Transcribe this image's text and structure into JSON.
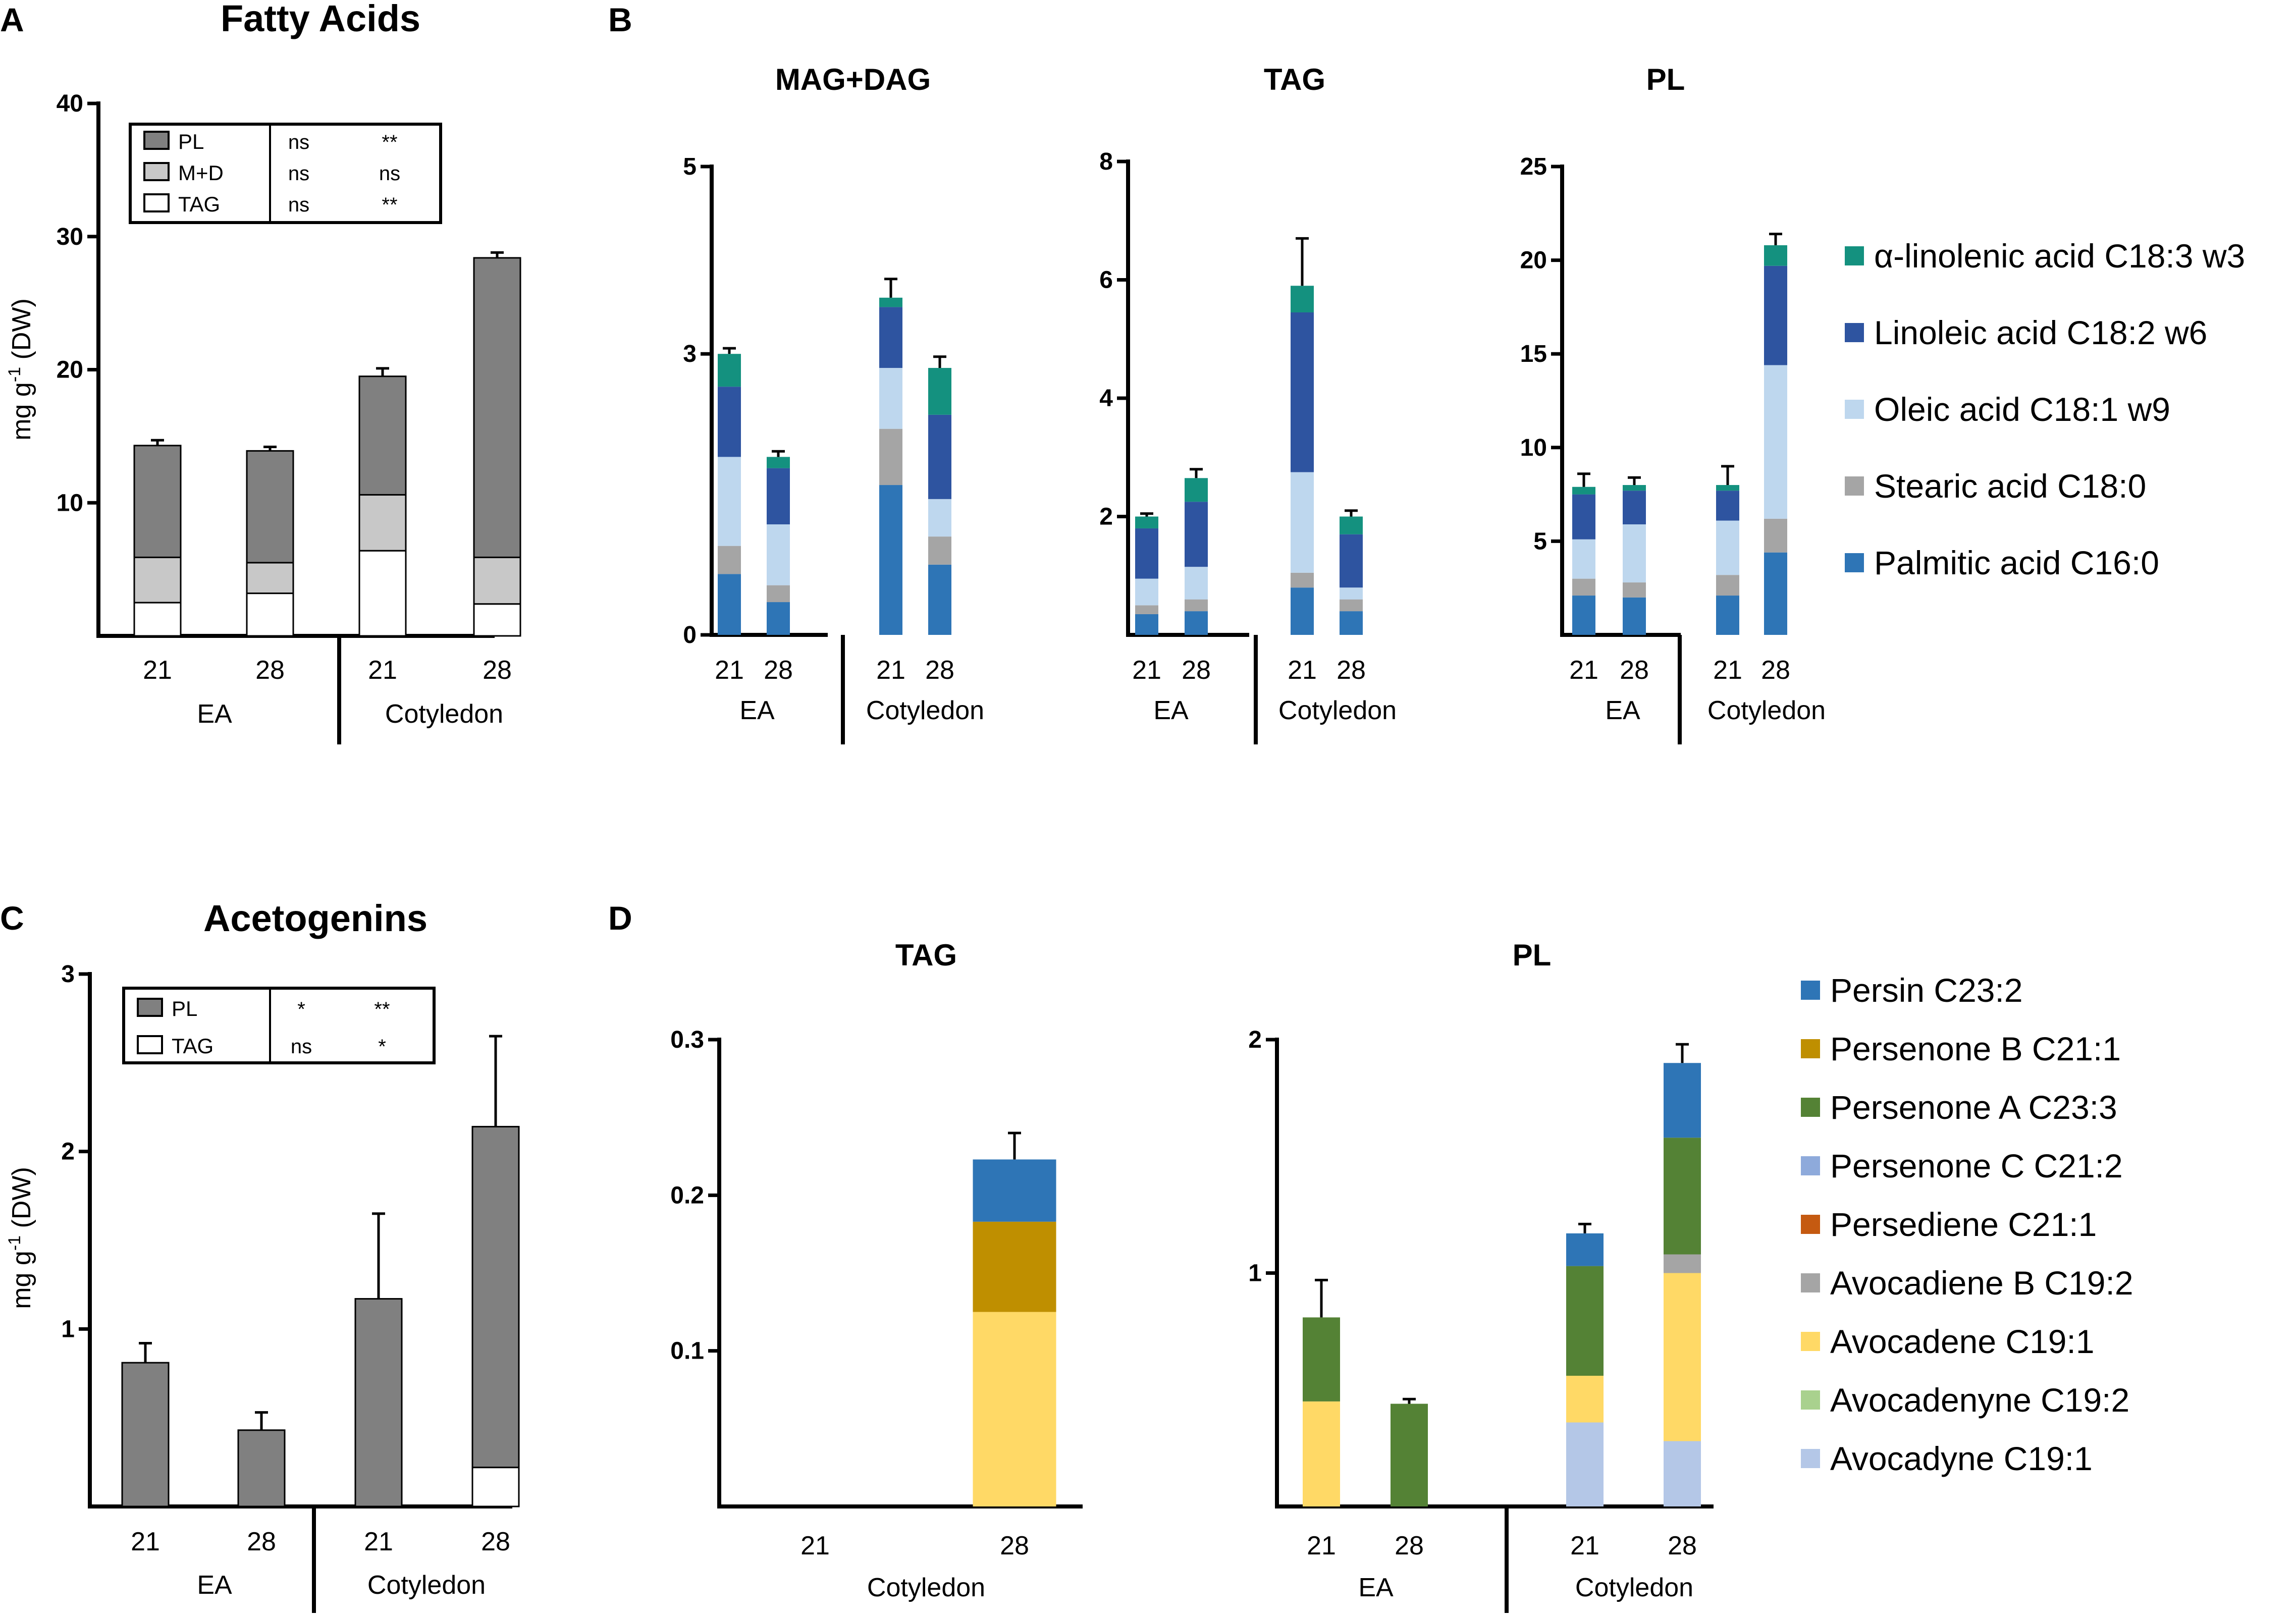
{
  "panels": {
    "A": "A",
    "B": "B",
    "C": "C",
    "D": "D"
  },
  "group_labels": {
    "ea": "EA",
    "cotyledon": "Cotyledon"
  },
  "fa_legend": {
    "items": [
      {
        "name": "α-linolenic acid C18:3 w3",
        "color": "#14917f"
      },
      {
        "name": "Linoleic acid  C18:2 w6",
        "color": "#2e54a0"
      },
      {
        "name": "Oleic acid C18:1 w9",
        "color": "#bed7ee"
      },
      {
        "name": "Stearic acid C18:0",
        "color": "#a5a5a5"
      },
      {
        "name": "Palmitic acid C16:0",
        "color": "#2e75b6"
      }
    ]
  },
  "ac_legend": {
    "items": [
      {
        "name": "Persin  C23:2",
        "color": "#2e75b6"
      },
      {
        "name": "Persenone B C21:1",
        "color": "#bf8f00"
      },
      {
        "name": "Persenone A C23:3",
        "color": "#548235"
      },
      {
        "name": "Persenone C C21:2",
        "color": "#8eaadb"
      },
      {
        "name": "Persediene C21:1",
        "color": "#c55a11"
      },
      {
        "name": "Avocadiene B C19:2",
        "color": "#a5a5a5"
      },
      {
        "name": "Avocadene C19:1",
        "color": "#ffd966"
      },
      {
        "name": "Avocadenyne C19:2",
        "color": "#a9d18e"
      },
      {
        "name": "Avocadyne C19:1",
        "color": "#b4c7e7"
      }
    ]
  },
  "chart_data": [
    {
      "id": "A",
      "type": "bar",
      "stacked": true,
      "title": "Fatty Acids",
      "ylabel": "mg g-1 (DW)",
      "ylim": [
        0,
        40
      ],
      "yticks": [
        10,
        20,
        30,
        40
      ],
      "categories": [
        "21",
        "28",
        "21",
        "28"
      ],
      "groups": [
        "EA",
        "EA",
        "Cotyledon",
        "Cotyledon"
      ],
      "series": [
        {
          "name": "TAG",
          "color": "#ffffff",
          "values": [
            2.5,
            3.2,
            6.4,
            2.4
          ]
        },
        {
          "name": "M+D",
          "color": "#c8c8c8",
          "values": [
            3.4,
            2.3,
            4.2,
            3.5
          ]
        },
        {
          "name": "PL",
          "color": "#808080",
          "values": [
            8.4,
            8.4,
            8.9,
            22.5
          ]
        }
      ],
      "errors": [
        0.4,
        0.3,
        0.6,
        0.4
      ],
      "sig_table": {
        "rows": [
          {
            "name": "PL",
            "color": "#808080",
            "ea": "ns",
            "cot": "**"
          },
          {
            "name": "M+D",
            "color": "#c8c8c8",
            "ea": "ns",
            "cot": "ns"
          },
          {
            "name": "TAG",
            "color": "#ffffff",
            "ea": "ns",
            "cot": "**"
          }
        ]
      }
    },
    {
      "id": "B1",
      "type": "bar",
      "stacked": true,
      "title": "MAG+DAG",
      "ylim": [
        0,
        5
      ],
      "yticks": [
        0,
        3,
        5
      ],
      "categories": [
        "21",
        "28",
        "21",
        "28"
      ],
      "groups": [
        "EA",
        "EA",
        "Cotyledon",
        "Cotyledon"
      ],
      "series": [
        {
          "name": "Palmitic acid C16:0",
          "color": "#2e75b6",
          "values": [
            0.65,
            0.35,
            1.6,
            0.75
          ]
        },
        {
          "name": "Stearic acid C18:0",
          "color": "#a5a5a5",
          "values": [
            0.3,
            0.18,
            0.6,
            0.3
          ]
        },
        {
          "name": "Oleic acid C18:1 w9",
          "color": "#bed7ee",
          "values": [
            0.95,
            0.65,
            0.65,
            0.4
          ]
        },
        {
          "name": "Linoleic acid  C18:2 w6",
          "color": "#2e54a0",
          "values": [
            0.75,
            0.6,
            0.65,
            0.9
          ]
        },
        {
          "name": "α-linolenic acid C18:3 w3",
          "color": "#14917f",
          "values": [
            0.35,
            0.12,
            0.1,
            0.5
          ]
        }
      ],
      "errors": [
        0.06,
        0.06,
        0.2,
        0.12
      ]
    },
    {
      "id": "B2",
      "type": "bar",
      "stacked": true,
      "title": "TAG",
      "ylim": [
        0,
        8
      ],
      "yticks": [
        2,
        4,
        6,
        8
      ],
      "categories": [
        "21",
        "28",
        "21",
        "28"
      ],
      "groups": [
        "EA",
        "EA",
        "Cotyledon",
        "Cotyledon"
      ],
      "series": [
        {
          "name": "Palmitic acid C16:0",
          "color": "#2e75b6",
          "values": [
            0.35,
            0.4,
            0.8,
            0.4
          ]
        },
        {
          "name": "Stearic acid C18:0",
          "color": "#a5a5a5",
          "values": [
            0.15,
            0.2,
            0.25,
            0.2
          ]
        },
        {
          "name": "Oleic acid C18:1 w9",
          "color": "#bed7ee",
          "values": [
            0.45,
            0.55,
            1.7,
            0.2
          ]
        },
        {
          "name": "Linoleic acid  C18:2 w6",
          "color": "#2e54a0",
          "values": [
            0.85,
            1.1,
            2.7,
            0.9
          ]
        },
        {
          "name": "α-linolenic acid C18:3 w3",
          "color": "#14917f",
          "values": [
            0.2,
            0.4,
            0.45,
            0.3
          ]
        }
      ],
      "errors": [
        0.05,
        0.15,
        0.8,
        0.1
      ]
    },
    {
      "id": "B3",
      "type": "bar",
      "stacked": true,
      "title": "PL",
      "ylim": [
        0,
        25
      ],
      "yticks": [
        5,
        10,
        15,
        20,
        25
      ],
      "categories": [
        "21",
        "28",
        "21",
        "28"
      ],
      "groups": [
        "EA",
        "EA",
        "Cotyledon",
        "Cotyledon"
      ],
      "series": [
        {
          "name": "Palmitic acid C16:0",
          "color": "#2e75b6",
          "values": [
            2.1,
            2.0,
            2.1,
            4.4
          ]
        },
        {
          "name": "Stearic acid C18:0",
          "color": "#a5a5a5",
          "values": [
            0.9,
            0.8,
            1.1,
            1.8
          ]
        },
        {
          "name": "Oleic acid C18:1 w9",
          "color": "#bed7ee",
          "values": [
            2.1,
            3.1,
            2.9,
            8.2
          ]
        },
        {
          "name": "Linoleic acid  C18:2 w6",
          "color": "#2e54a0",
          "values": [
            2.4,
            1.8,
            1.6,
            5.3
          ]
        },
        {
          "name": "α-linolenic acid C18:3 w3",
          "color": "#14917f",
          "values": [
            0.4,
            0.3,
            0.3,
            1.1
          ]
        }
      ],
      "errors": [
        0.7,
        0.4,
        1.0,
        0.6
      ]
    },
    {
      "id": "C",
      "type": "bar",
      "stacked": true,
      "title": "Acetogenins",
      "ylabel": "mg g-1 (DW)",
      "ylim": [
        0,
        3
      ],
      "yticks": [
        1,
        2,
        3
      ],
      "categories": [
        "21",
        "28",
        "21",
        "28"
      ],
      "groups": [
        "EA",
        "EA",
        "Cotyledon",
        "Cotyledon"
      ],
      "series": [
        {
          "name": "TAG",
          "color": "#ffffff",
          "values": [
            0,
            0,
            0,
            0.22
          ]
        },
        {
          "name": "PL",
          "color": "#808080",
          "values": [
            0.81,
            0.43,
            1.17,
            1.92
          ]
        }
      ],
      "errors": [
        0.11,
        0.1,
        0.48,
        0.51
      ],
      "sig_table": {
        "rows": [
          {
            "name": "PL",
            "color": "#808080",
            "ea": "*",
            "cot": "**"
          },
          {
            "name": "TAG",
            "color": "#ffffff",
            "ea": "ns",
            "cot": "*"
          }
        ]
      }
    },
    {
      "id": "D1",
      "type": "bar",
      "stacked": true,
      "title": "TAG",
      "ylim": [
        0,
        0.3
      ],
      "yticks": [
        0.1,
        0.2,
        0.3
      ],
      "categories": [
        "21",
        "28"
      ],
      "groups": [
        "Cotyledon",
        "Cotyledon"
      ],
      "series": [
        {
          "name": "Avocadene C19:1",
          "color": "#ffd966",
          "values": [
            0,
            0.125
          ]
        },
        {
          "name": "Persenone B C21:1",
          "color": "#bf8f00",
          "values": [
            0,
            0.058
          ]
        },
        {
          "name": "Persin  C23:2",
          "color": "#2e75b6",
          "values": [
            0,
            0.04
          ]
        }
      ],
      "errors": [
        null,
        0.017
      ]
    },
    {
      "id": "D2",
      "type": "bar",
      "stacked": true,
      "title": "PL",
      "ylim": [
        0,
        2
      ],
      "yticks": [
        1,
        2
      ],
      "categories": [
        "21",
        "28",
        "21",
        "28"
      ],
      "groups": [
        "EA",
        "EA",
        "Cotyledon",
        "Cotyledon"
      ],
      "series": [
        {
          "name": "Avocadyne C19:1",
          "color": "#b4c7e7",
          "values": [
            0,
            0,
            0.36,
            0.28
          ]
        },
        {
          "name": "Avocadene C19:1",
          "color": "#ffd966",
          "values": [
            0.45,
            0,
            0.2,
            0.72
          ]
        },
        {
          "name": "Avocadiene B C19:2",
          "color": "#a5a5a5",
          "values": [
            0,
            0,
            0,
            0.08
          ]
        },
        {
          "name": "Persenone A C23:3",
          "color": "#548235",
          "values": [
            0.36,
            0.44,
            0.47,
            0.5
          ]
        },
        {
          "name": "Persin  C23:2",
          "color": "#2e75b6",
          "values": [
            0,
            0,
            0.14,
            0.32
          ]
        }
      ],
      "errors": [
        0.16,
        0.02,
        0.04,
        0.08
      ]
    }
  ]
}
